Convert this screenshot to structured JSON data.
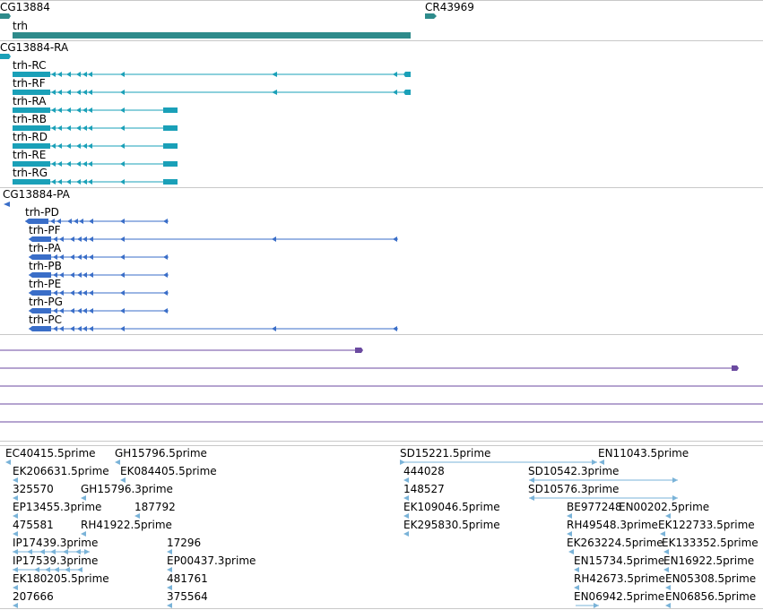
{
  "colors": {
    "gene_track": "#2e8b8b",
    "transcript_track": "#1aa0b8",
    "protein_track": "#3a6ec8",
    "misc_track": "#6b4aa0",
    "est_track": "#7ab3d8",
    "separator": "#c8c8c8"
  },
  "gene_track": {
    "features": [
      {
        "label": "CG13884"
      },
      {
        "label": "CR43969"
      },
      {
        "label": "trh"
      }
    ]
  },
  "transcript_track": {
    "features": [
      {
        "label": "CG13884-RA"
      },
      {
        "label": "trh-RC"
      },
      {
        "label": "trh-RF"
      },
      {
        "label": "trh-RA"
      },
      {
        "label": "trh-RB"
      },
      {
        "label": "trh-RD"
      },
      {
        "label": "trh-RE"
      },
      {
        "label": "trh-RG"
      }
    ]
  },
  "protein_track": {
    "features": [
      {
        "label": "CG13884-PA"
      },
      {
        "label": "trh-PD"
      },
      {
        "label": "trh-PF"
      },
      {
        "label": "trh-PA"
      },
      {
        "label": "trh-PB"
      },
      {
        "label": "trh-PE"
      },
      {
        "label": "trh-PG"
      },
      {
        "label": "trh-PC"
      }
    ]
  },
  "est_track": {
    "labels": [
      "EC40415.5prime",
      "GH15796.5prime",
      "SD15221.5prime",
      "EN11043.5prime",
      "EK206631.5prime",
      "EK084405.5prime",
      "444028",
      "SD10542.3prime",
      "325570",
      "GH15796.3prime",
      "148527",
      "SD10576.3prime",
      "EP13455.3prime",
      "187792",
      "EK109046.5prime",
      "BE977248",
      "EN00202.5prime",
      "475581",
      "RH41922.5prime",
      "EK295830.5prime",
      "RH49548.3prime",
      "EK122733.5prime",
      "IP17439.3prime",
      "17296",
      "EK263224.5prime",
      "EK133352.5prime",
      "IP17539.3prime",
      "EP00437.3prime",
      "EN15734.5prime",
      "EN16922.5prime",
      "EK180205.5prime",
      "481761",
      "RH42673.5prime",
      "EN05308.5prime",
      "207666",
      "375564",
      "EN06942.5prime",
      "EN06856.5prime"
    ]
  }
}
